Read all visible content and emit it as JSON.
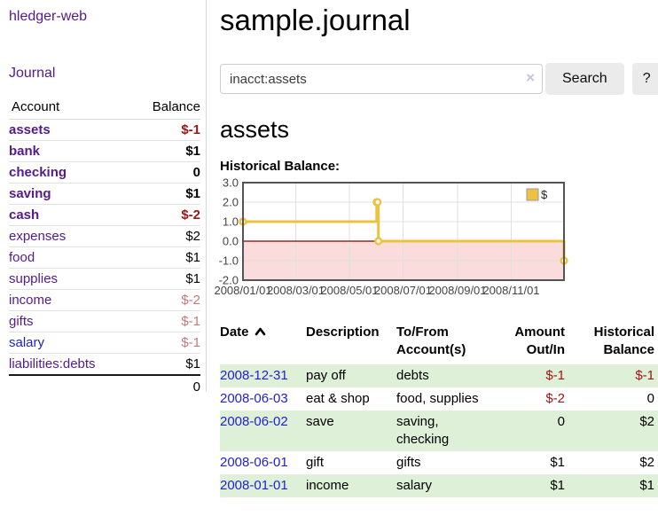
{
  "colors": {
    "accent": "#551a8b",
    "link-blue": "#2222cc",
    "neg-strong": "#a31515",
    "neg-muted": "#c47878",
    "row-green": "#dff0d8"
  },
  "app": {
    "brand": "hledger-web",
    "nav_journal": "Journal"
  },
  "sidebar": {
    "col_account": "Account",
    "col_balance": "Balance",
    "accounts": [
      {
        "name": "assets",
        "indent": 1,
        "bold": true,
        "balance": "$-1",
        "neg": "strong"
      },
      {
        "name": "bank",
        "indent": 2,
        "bold": true,
        "balance": "$1"
      },
      {
        "name": "checking",
        "indent": 3,
        "bold": true,
        "balance": "0"
      },
      {
        "name": "saving",
        "indent": 3,
        "bold": true,
        "balance": "$1"
      },
      {
        "name": "cash",
        "indent": 2,
        "bold": true,
        "balance": "$-2",
        "neg": "strong"
      },
      {
        "name": "expenses",
        "indent": 1,
        "bold": false,
        "balance": "$2"
      },
      {
        "name": "food",
        "indent": 2,
        "bold": false,
        "balance": "$1"
      },
      {
        "name": "supplies",
        "indent": 2,
        "bold": false,
        "balance": "$1"
      },
      {
        "name": "income",
        "indent": 1,
        "bold": false,
        "balance": "$-2",
        "neg": "muted"
      },
      {
        "name": "gifts",
        "indent": 2,
        "bold": false,
        "balance": "$-1",
        "neg": "muted"
      },
      {
        "name": "salary",
        "indent": 2,
        "bold": false,
        "balance": "$-1",
        "neg": "muted",
        "link": "blue"
      },
      {
        "name": "liabilities:debts",
        "indent": 1,
        "bold": false,
        "balance": "$1"
      }
    ],
    "total": "0"
  },
  "main": {
    "title": "sample.journal",
    "search": {
      "value": "inacct:assets",
      "clear": "×",
      "button": "Search",
      "help": "?"
    },
    "account_heading": "assets",
    "chart_heading": "Historical Balance:"
  },
  "chart_data": {
    "type": "line",
    "step": true,
    "title": "Historical Balance:",
    "ylim": [
      -2,
      3
    ],
    "yticks": [
      "3.0",
      "2.0",
      "1.0",
      "0.0",
      "-1.0",
      "-2.0"
    ],
    "xrange": [
      "2008-01-01",
      "2008-12-31"
    ],
    "xticklabels": [
      "2008/01/01",
      "2008/03/01",
      "2008/05/01",
      "2008/07/01",
      "2008/09/01",
      "2008/11/01"
    ],
    "grid": true,
    "legend_position": "top-right",
    "series": [
      {
        "name": "$",
        "color": "#edc240",
        "points": [
          [
            "2008-01-01",
            1
          ],
          [
            "2008-06-01",
            2
          ],
          [
            "2008-06-02",
            2
          ],
          [
            "2008-06-03",
            0
          ],
          [
            "2008-12-31",
            -1
          ]
        ]
      }
    ],
    "negative_region_fill": "#fadcdc",
    "zero_line_color": "#8b0000",
    "gridline_color": "#e0e0e0",
    "border_color": "#545454"
  },
  "register": {
    "headers": [
      {
        "label": "Date",
        "align": "left",
        "sorted": "asc"
      },
      {
        "label": "Description",
        "align": "left"
      },
      {
        "label": "To/From Account(s)",
        "align": "left"
      },
      {
        "label": "Amount Out/In",
        "align": "right"
      },
      {
        "label": "Historical Balance",
        "align": "right"
      }
    ],
    "rows": [
      {
        "date": "2008-12-31",
        "description": "pay off",
        "accounts": "debts",
        "amount": "$-1",
        "amount_neg": true,
        "balance": "$-1",
        "balance_neg": true
      },
      {
        "date": "2008-06-03",
        "description": "eat & shop",
        "accounts": "food, supplies",
        "amount": "$-2",
        "amount_neg": true,
        "balance": "0",
        "balance_neg": false
      },
      {
        "date": "2008-06-02",
        "description": "save",
        "accounts": "saving, checking",
        "amount": "0",
        "amount_neg": false,
        "balance": "$2",
        "balance_neg": false
      },
      {
        "date": "2008-06-01",
        "description": "gift",
        "accounts": "gifts",
        "amount": "$1",
        "amount_neg": false,
        "balance": "$2",
        "balance_neg": false
      },
      {
        "date": "2008-01-01",
        "description": "income",
        "accounts": "salary",
        "amount": "$1",
        "amount_neg": false,
        "balance": "$1",
        "balance_neg": false
      }
    ]
  }
}
